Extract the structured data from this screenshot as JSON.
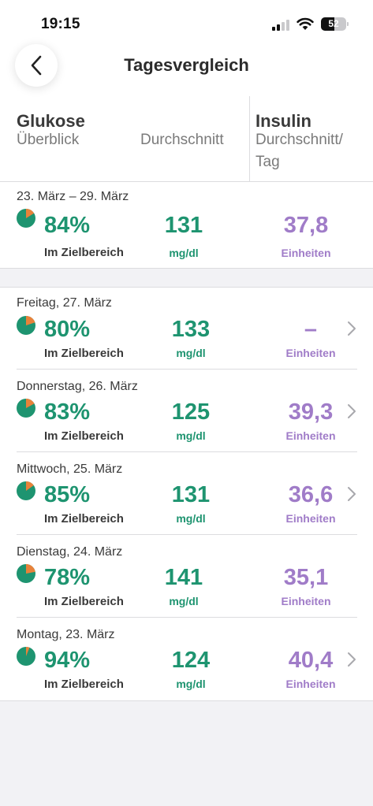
{
  "status_bar": {
    "time": "19:15",
    "battery": "52",
    "battery_level": 0.52
  },
  "header": {
    "title": "Tagesvergleich",
    "back_icon": "chevron-left-icon"
  },
  "columns": {
    "glucose_title": "Glukose",
    "glucose_sub": "Überblick",
    "average": "Durchschnitt",
    "insulin_title": "Insulin",
    "insulin_sub_1": "Durchschnitt/",
    "insulin_sub_2": "Tag"
  },
  "colors": {
    "green": "#1e9470",
    "orange": "#e8823a",
    "purple": "#a07cc8"
  },
  "summary": {
    "range": "23. März – 29. März",
    "in_range_pct": "84%",
    "in_range_fraction": 0.84,
    "in_range_label": "Im Zielbereich",
    "avg_value": "131",
    "avg_unit": "mg/dl",
    "insulin_value": "37,8",
    "insulin_unit": "Einheiten"
  },
  "days": [
    {
      "date": "Freitag, 27. März",
      "in_range_pct": "80%",
      "in_range_fraction": 0.8,
      "in_range_label": "Im Zielbereich",
      "avg_value": "133",
      "avg_unit": "mg/dl",
      "insulin_value": "–",
      "insulin_unit": "Einheiten",
      "chevron": true
    },
    {
      "date": "Donnerstag, 26. März",
      "in_range_pct": "83%",
      "in_range_fraction": 0.83,
      "in_range_label": "Im Zielbereich",
      "avg_value": "125",
      "avg_unit": "mg/dl",
      "insulin_value": "39,3",
      "insulin_unit": "Einheiten",
      "chevron": true
    },
    {
      "date": "Mittwoch, 25. März",
      "in_range_pct": "85%",
      "in_range_fraction": 0.85,
      "in_range_label": "Im Zielbereich",
      "avg_value": "131",
      "avg_unit": "mg/dl",
      "insulin_value": "36,6",
      "insulin_unit": "Einheiten",
      "chevron": true
    },
    {
      "date": "Dienstag, 24. März",
      "in_range_pct": "78%",
      "in_range_fraction": 0.78,
      "in_range_label": "Im Zielbereich",
      "avg_value": "141",
      "avg_unit": "mg/dl",
      "insulin_value": "35,1",
      "insulin_unit": "Einheiten",
      "chevron": false
    },
    {
      "date": "Montag, 23. März",
      "in_range_pct": "94%",
      "in_range_fraction": 0.94,
      "in_range_label": "Im Zielbereich",
      "avg_value": "124",
      "avg_unit": "mg/dl",
      "insulin_value": "40,4",
      "insulin_unit": "Einheiten",
      "chevron": true
    }
  ]
}
